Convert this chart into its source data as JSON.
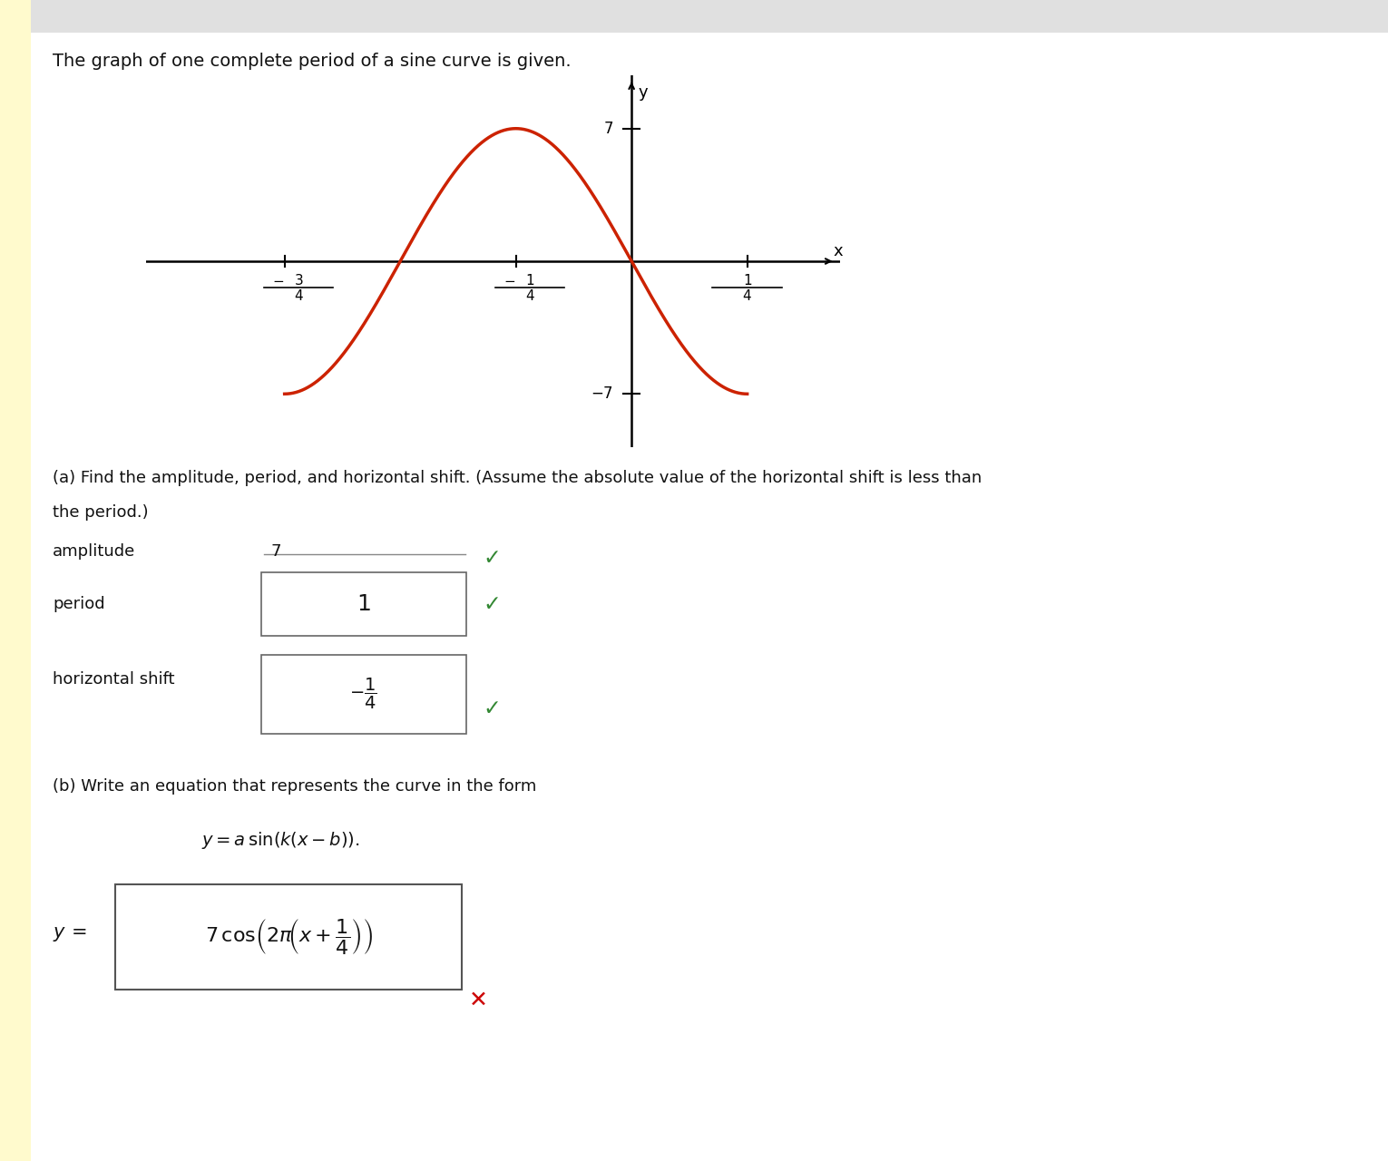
{
  "bg_color": "#fffff0",
  "white_color": "#ffffff",
  "sidebar_color": "#fffacd",
  "text_color": "#111111",
  "red_curve_color": "#cc2200",
  "green_check_color": "#338833",
  "red_x_color": "#cc0000",
  "title_text": "The graph of one complete period of a sine curve is given.",
  "graph_y_label": "y",
  "graph_x_label": "x",
  "amplitude": 7,
  "x_ticks": [
    -0.75,
    -0.25,
    0.25
  ],
  "y_tick_val": 7,
  "font_size_title": 14,
  "font_size_graph": 13,
  "font_size_body": 13,
  "font_size_answer": 15
}
